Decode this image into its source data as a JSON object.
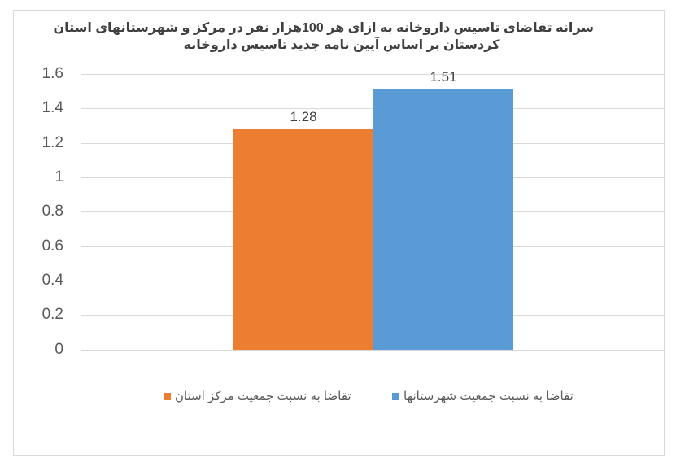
{
  "chart_data": {
    "type": "bar",
    "title": "سرانه تقاضای تاسیس داروخانه به ازای هر 100هزار نفر در مرکز و شهرستانهای استان کردستان بر اساس آیین نامه جدید تاسیس داروخانه",
    "title_lines": [
      "سرانه تقاضای تاسیس داروخانه به ازای هر 100هزار نفر در مرکز و شهرستانهای استان",
      "کردستان بر اساس آیین نامه جدید تاسیس داروخانه"
    ],
    "categories": [
      ""
    ],
    "series": [
      {
        "name": "تقاضا به نسبت جمعیت مرکز استان",
        "values": [
          1.28
        ],
        "color": "#ED7D31",
        "label": "1.28"
      },
      {
        "name": "تقاضا به نسبت جمعیت شهرستانها",
        "values": [
          1.51
        ],
        "color": "#5B9BD5",
        "label": "1.51"
      }
    ],
    "xlabel": "",
    "ylabel": "",
    "ylim": [
      0,
      1.6
    ],
    "yticks": [
      "1.6",
      "1.4",
      "1.2",
      "1",
      "0.8",
      "0.6",
      "0.4",
      "0.2",
      "0"
    ],
    "grid": true,
    "legend_position": "bottom",
    "data_labels": true
  },
  "legend": {
    "items": [
      {
        "label": "تقاضا به نسبت جمعیت مرکز استان",
        "color": "#ED7D31"
      },
      {
        "label": "تقاضا به نسبت جمعیت شهرستانها",
        "color": "#5B9BD5"
      }
    ]
  }
}
